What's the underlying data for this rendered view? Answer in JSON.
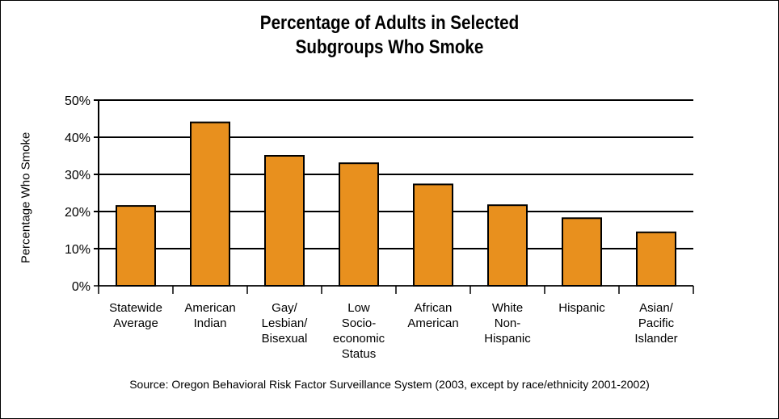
{
  "chart_data": {
    "type": "bar",
    "title_line1": "Percentage of Adults in Selected",
    "title_line2": "Subgroups Who Smoke",
    "ylabel": "Percentage Who Smoke",
    "ylim": [
      0,
      50
    ],
    "yticks": [
      "0%",
      "10%",
      "20%",
      "30%",
      "40%",
      "50%"
    ],
    "categories": [
      [
        "Statewide",
        "Average"
      ],
      [
        "American",
        "Indian"
      ],
      [
        "Gay/",
        "Lesbian/",
        "Bisexual"
      ],
      [
        "Low",
        "Socio-",
        "economic",
        "Status"
      ],
      [
        "African",
        "American"
      ],
      [
        "White",
        "Non-",
        "Hispanic"
      ],
      [
        "Hispanic"
      ],
      [
        "Asian/",
        "Pacific",
        "Islander"
      ]
    ],
    "values": [
      21.5,
      44,
      35,
      33,
      27.3,
      21.7,
      18.2,
      14.4
    ],
    "bar_color": "#e8901e",
    "grid": true,
    "source": "Source: Oregon Behavioral Risk Factor Surveillance System (2003, except by race/ethnicity 2001-2002)"
  }
}
